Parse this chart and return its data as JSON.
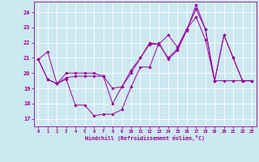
{
  "background_color": "#cce8f0",
  "line_color": "#990099",
  "grid_color": "#ffffff",
  "xlabel": "Windchill (Refroidissement éolien,°C)",
  "ylim": [
    16.5,
    24.7
  ],
  "xlim": [
    -0.5,
    23.5
  ],
  "yticks": [
    17,
    18,
    19,
    20,
    21,
    22,
    23,
    24
  ],
  "xticks": [
    0,
    1,
    2,
    3,
    4,
    5,
    6,
    7,
    8,
    9,
    10,
    11,
    12,
    13,
    14,
    15,
    16,
    17,
    18,
    19,
    20,
    21,
    22,
    23
  ],
  "series1": [
    20.9,
    21.4,
    19.3,
    19.6,
    17.9,
    17.9,
    17.2,
    17.3,
    17.3,
    17.6,
    19.1,
    20.4,
    20.4,
    22.0,
    20.9,
    21.5,
    22.8,
    24.5,
    22.9,
    19.5,
    22.5,
    21.0,
    19.5,
    19.5
  ],
  "series2": [
    20.9,
    19.6,
    19.3,
    19.7,
    19.8,
    19.8,
    19.8,
    19.8,
    19.0,
    19.1,
    20.0,
    21.0,
    21.9,
    21.9,
    21.0,
    21.6,
    22.9,
    23.7,
    22.2,
    19.5,
    19.5,
    19.5,
    19.5,
    19.5
  ],
  "series3": [
    20.9,
    19.6,
    19.3,
    20.0,
    20.0,
    20.0,
    20.0,
    19.8,
    18.0,
    19.1,
    20.2,
    21.0,
    22.0,
    21.9,
    22.5,
    21.7,
    22.9,
    24.2,
    22.9,
    19.5,
    22.5,
    21.0,
    19.5,
    19.5
  ]
}
